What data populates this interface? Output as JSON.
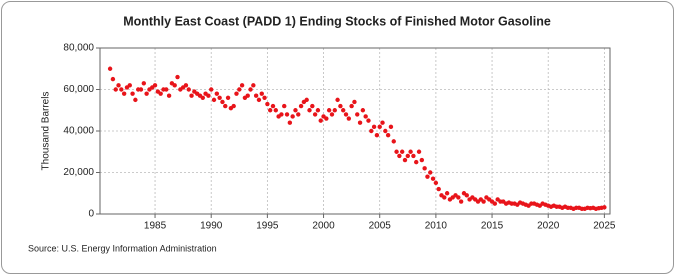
{
  "chart_data": {
    "type": "scatter",
    "title": "Monthly East Coast (PADD 1) Ending Stocks of Finished Motor Gasoline",
    "y_label": "Thousand Barrels",
    "source": "Source: U.S. Energy Information Administration",
    "color": "#e8141a",
    "grid": true,
    "xlim": [
      1980.1,
      2025.5
    ],
    "ylim": [
      0,
      80000
    ],
    "xticks": [
      1985,
      1990,
      1995,
      2000,
      2005,
      2010,
      2015,
      2020,
      2025
    ],
    "yticks": [
      0,
      {
        "value": 20000,
        "label": "20,000"
      },
      {
        "value": 40000,
        "label": "40,000"
      },
      {
        "value": 60000,
        "label": "60,000"
      },
      {
        "value": 80000,
        "label": "80,000"
      }
    ],
    "x": [
      1981,
      1981.25,
      1981.5,
      1981.75,
      1982,
      1982.25,
      1982.5,
      1982.75,
      1983,
      1983.25,
      1983.5,
      1983.75,
      1984,
      1984.25,
      1984.5,
      1984.75,
      1985,
      1985.25,
      1985.5,
      1985.75,
      1986,
      1986.25,
      1986.5,
      1986.75,
      1987,
      1987.25,
      1987.5,
      1987.75,
      1988,
      1988.25,
      1988.5,
      1988.75,
      1989,
      1989.25,
      1989.5,
      1989.75,
      1990,
      1990.25,
      1990.5,
      1990.75,
      1991,
      1991.25,
      1991.5,
      1991.75,
      1992,
      1992.25,
      1992.5,
      1992.75,
      1993,
      1993.25,
      1993.5,
      1993.75,
      1994,
      1994.25,
      1994.5,
      1994.75,
      1995,
      1995.25,
      1995.5,
      1995.75,
      1996,
      1996.25,
      1996.5,
      1996.75,
      1997,
      1997.25,
      1997.5,
      1997.75,
      1998,
      1998.25,
      1998.5,
      1998.75,
      1999,
      1999.25,
      1999.5,
      1999.75,
      2000,
      2000.25,
      2000.5,
      2000.75,
      2001,
      2001.25,
      2001.5,
      2001.75,
      2002,
      2002.25,
      2002.5,
      2002.75,
      2003,
      2003.25,
      2003.5,
      2003.75,
      2004,
      2004.25,
      2004.5,
      2004.75,
      2005,
      2005.25,
      2005.5,
      2005.75,
      2006,
      2006.25,
      2006.5,
      2006.75,
      2007,
      2007.25,
      2007.5,
      2007.75,
      2008,
      2008.25,
      2008.5,
      2008.75,
      2009,
      2009.25,
      2009.5,
      2009.75,
      2010,
      2010.25,
      2010.5,
      2010.75,
      2011,
      2011.25,
      2011.5,
      2011.75,
      2012,
      2012.25,
      2012.5,
      2012.75,
      2013,
      2013.25,
      2013.5,
      2013.75,
      2014,
      2014.25,
      2014.5,
      2014.75,
      2015,
      2015.25,
      2015.5,
      2015.75,
      2016,
      2016.25,
      2016.5,
      2016.75,
      2017,
      2017.25,
      2017.5,
      2017.75,
      2018,
      2018.25,
      2018.5,
      2018.75,
      2019,
      2019.25,
      2019.5,
      2019.75,
      2020,
      2020.25,
      2020.5,
      2020.75,
      2021,
      2021.25,
      2021.5,
      2021.75,
      2022,
      2022.25,
      2022.5,
      2022.75,
      2023,
      2023.25,
      2023.5,
      2023.75,
      2024,
      2024.25,
      2024.5,
      2024.75,
      2025
    ],
    "values": [
      70000,
      65000,
      60000,
      62000,
      60000,
      58000,
      61000,
      62000,
      58000,
      55000,
      60000,
      60000,
      63000,
      58000,
      60000,
      61000,
      62000,
      59000,
      58000,
      60000,
      60000,
      57000,
      63000,
      62000,
      66000,
      60000,
      61000,
      62000,
      60000,
      57000,
      59000,
      58000,
      57000,
      56000,
      58000,
      57000,
      60000,
      55000,
      58000,
      56000,
      54000,
      52000,
      56000,
      51000,
      52000,
      58000,
      60000,
      62000,
      56000,
      57000,
      60000,
      62000,
      57000,
      55000,
      58000,
      56000,
      53000,
      50000,
      52000,
      50000,
      47000,
      48000,
      52000,
      48000,
      44000,
      47000,
      50000,
      48000,
      52000,
      54000,
      55000,
      50000,
      52000,
      48000,
      50000,
      45000,
      47000,
      46000,
      50000,
      48000,
      50000,
      55000,
      52000,
      50000,
      48000,
      46000,
      52000,
      54000,
      48000,
      44000,
      50000,
      47000,
      45000,
      40000,
      42000,
      38000,
      42000,
      44000,
      40000,
      38000,
      42000,
      35000,
      30000,
      28000,
      30000,
      26000,
      28000,
      30000,
      28000,
      25000,
      30000,
      26000,
      22000,
      18000,
      20000,
      17000,
      15000,
      12000,
      9000,
      8000,
      10000,
      7000,
      8000,
      9000,
      8000,
      6000,
      10000,
      9000,
      7000,
      8000,
      7000,
      6000,
      7000,
      6000,
      8000,
      7000,
      6000,
      5000,
      7000,
      6000,
      6000,
      5000,
      5500,
      5000,
      5000,
      4500,
      5500,
      5000,
      4500,
      4000,
      5000,
      5000,
      4500,
      4000,
      5000,
      4500,
      4000,
      3500,
      4000,
      3500,
      3500,
      3000,
      3500,
      3000,
      3000,
      2500,
      3000,
      3000,
      2500,
      2500,
      3000,
      2800,
      3000,
      2500,
      2800,
      3000,
      3200
    ]
  }
}
